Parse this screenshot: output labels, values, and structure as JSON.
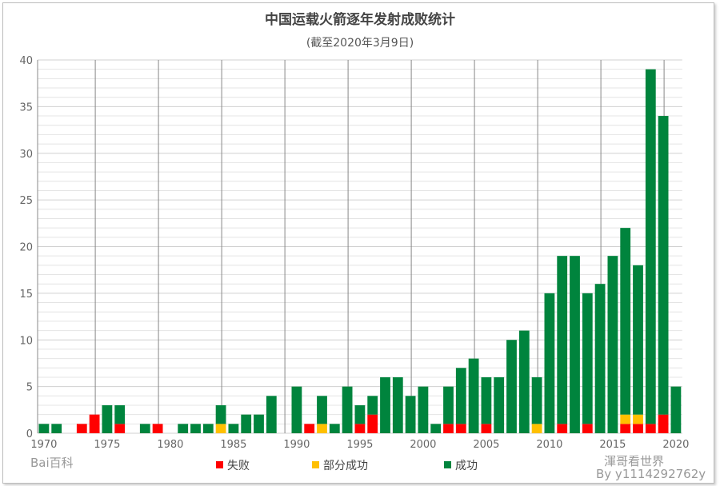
{
  "chart_data": {
    "type": "bar",
    "stacked": true,
    "title": "中国运载火箭逐年发射成败统计",
    "subtitle": "(截至2020年3月9日)",
    "x": [
      1970,
      1971,
      1972,
      1973,
      1974,
      1975,
      1976,
      1977,
      1978,
      1979,
      1980,
      1981,
      1982,
      1983,
      1984,
      1985,
      1986,
      1987,
      1988,
      1989,
      1990,
      1991,
      1992,
      1993,
      1994,
      1995,
      1996,
      1997,
      1998,
      1999,
      2000,
      2001,
      2002,
      2003,
      2004,
      2005,
      2006,
      2007,
      2008,
      2009,
      2010,
      2011,
      2012,
      2013,
      2014,
      2015,
      2016,
      2017,
      2018,
      2019,
      2020
    ],
    "xticks": [
      1970,
      1975,
      1980,
      1985,
      1990,
      1995,
      2000,
      2005,
      2010,
      2015,
      2020
    ],
    "ylim": [
      0,
      40
    ],
    "yticks": [
      0,
      5,
      10,
      15,
      20,
      25,
      30,
      35,
      40
    ],
    "grid": true,
    "legend_position": "bottom",
    "series": [
      {
        "name": "失败",
        "color": "#ff0000",
        "values": [
          0,
          0,
          0,
          1,
          2,
          0,
          1,
          0,
          0,
          1,
          0,
          0,
          0,
          0,
          0,
          0,
          0,
          0,
          0,
          0,
          0,
          1,
          0,
          0,
          0,
          1,
          2,
          0,
          0,
          0,
          0,
          0,
          1,
          1,
          0,
          1,
          0,
          0,
          0,
          0,
          0,
          1,
          0,
          1,
          0,
          0,
          1,
          1,
          1,
          2,
          0
        ]
      },
      {
        "name": "部分成功",
        "color": "#ffc000",
        "values": [
          0,
          0,
          0,
          0,
          0,
          0,
          0,
          0,
          0,
          0,
          0,
          0,
          0,
          0,
          1,
          0,
          0,
          0,
          0,
          0,
          0,
          0,
          1,
          0,
          0,
          0,
          0,
          0,
          0,
          0,
          0,
          0,
          0,
          0,
          0,
          0,
          0,
          0,
          0,
          1,
          0,
          0,
          0,
          0,
          0,
          0,
          1,
          1,
          0,
          0,
          0
        ]
      },
      {
        "name": "成功",
        "color": "#00843d",
        "values": [
          1,
          1,
          0,
          0,
          0,
          3,
          2,
          0,
          1,
          0,
          0,
          1,
          1,
          1,
          2,
          1,
          2,
          2,
          4,
          0,
          5,
          0,
          3,
          1,
          5,
          2,
          2,
          6,
          6,
          4,
          5,
          1,
          4,
          6,
          8,
          5,
          6,
          10,
          11,
          5,
          15,
          18,
          19,
          14,
          16,
          19,
          20,
          16,
          38,
          32,
          5
        ]
      }
    ]
  },
  "watermarks": [
    "Bai百科",
    "渾哥看世界",
    "By y1114292762y"
  ]
}
